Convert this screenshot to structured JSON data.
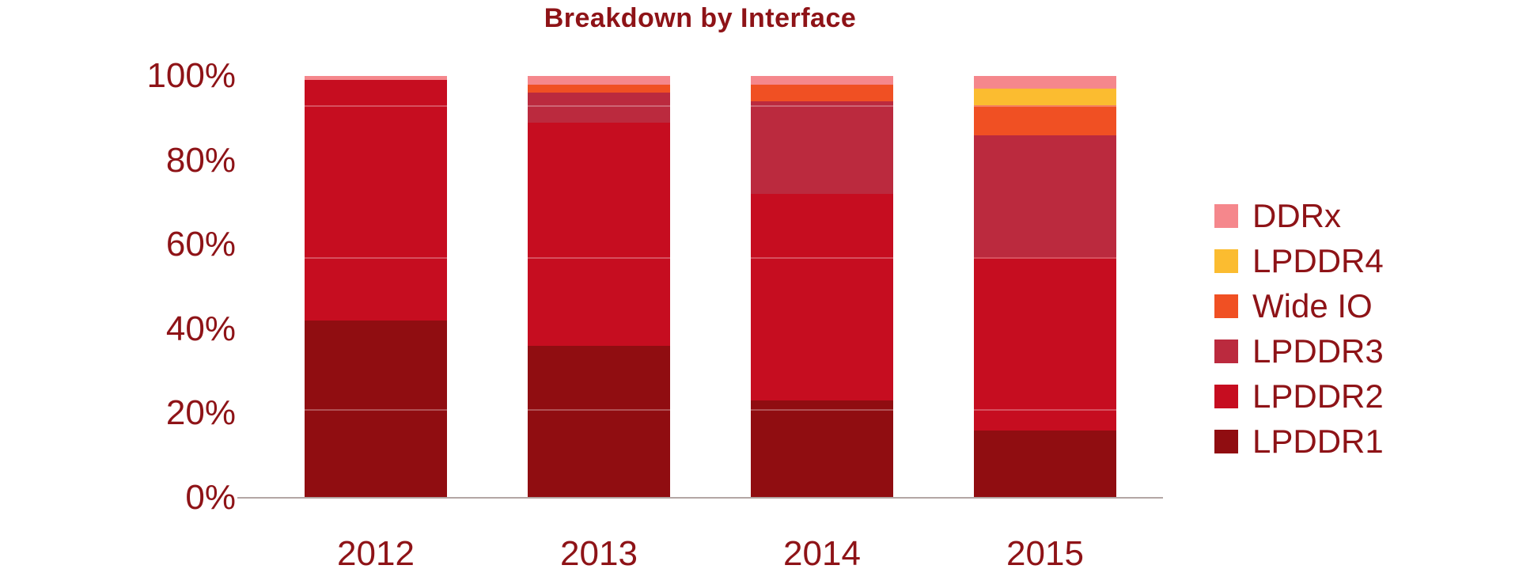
{
  "chart_data": {
    "type": "bar",
    "stacked": true,
    "normalized_percent": true,
    "title": "Breakdown by Interface",
    "categories": [
      "2012",
      "2013",
      "2014",
      "2015"
    ],
    "series": [
      {
        "name": "LPDDR1",
        "color": "#900d11",
        "values": [
          42,
          36,
          23,
          16
        ]
      },
      {
        "name": "LPDDR2",
        "color": "#c60d20",
        "values": [
          57,
          53,
          49,
          41
        ]
      },
      {
        "name": "LPDDR3",
        "color": "#bb2a3e",
        "values": [
          0,
          7,
          22,
          29
        ]
      },
      {
        "name": "Wide IO",
        "color": "#f05023",
        "values": [
          0,
          2,
          4,
          7
        ]
      },
      {
        "name": "LPDDR4",
        "color": "#fbbc30",
        "values": [
          0,
          0,
          0,
          4
        ]
      },
      {
        "name": "DDRx",
        "color": "#f5878c",
        "values": [
          1,
          2,
          2,
          3
        ]
      }
    ],
    "xlabel": "",
    "ylabel": "",
    "ylim": [
      0,
      100
    ],
    "yticks": [
      "0%",
      "20%",
      "40%",
      "60%",
      "80%",
      "100%"
    ],
    "grid": false,
    "legend_position": "right"
  },
  "legend": {
    "items": [
      {
        "label": "DDRx",
        "color": "#f5878c"
      },
      {
        "label": "LPDDR4",
        "color": "#fbbc30"
      },
      {
        "label": "Wide IO",
        "color": "#f05023"
      },
      {
        "label": "LPDDR3",
        "color": "#bb2a3e"
      },
      {
        "label": "LPDDR2",
        "color": "#c60d20"
      },
      {
        "label": "LPDDR1",
        "color": "#900d11"
      }
    ]
  },
  "style": {
    "text_color": "#8e1317",
    "axis_line_color": "#b3a6a4",
    "background": "#ffffff"
  }
}
